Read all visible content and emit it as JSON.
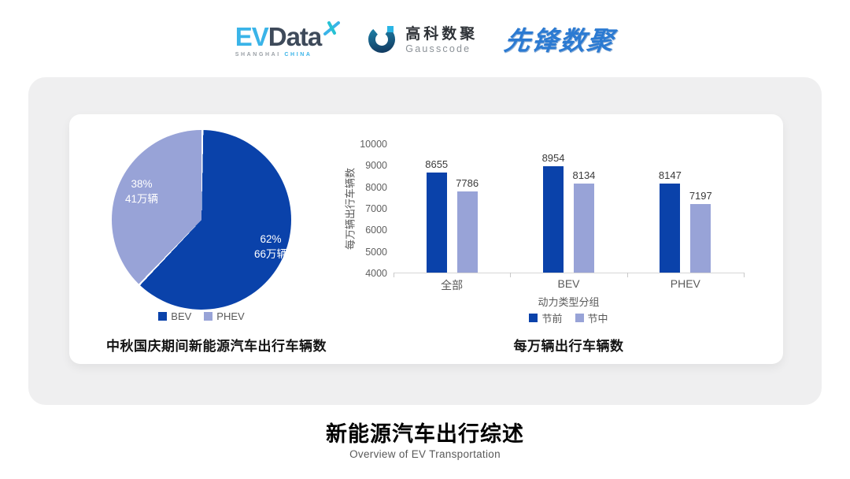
{
  "header": {
    "evdata_logo": {
      "ev": "EV",
      "data": "Data",
      "sub_primary": "SHANGHAI",
      "sub_accent": "CHINA"
    },
    "gausscode_logo": {
      "cn_name": "高科数聚",
      "en_name": "Gausscode"
    },
    "pioneer_logo": {
      "text": "先锋数聚"
    }
  },
  "colors": {
    "series_dark_blue": "#0a42aa",
    "series_periwinkle": "#98a3d7",
    "panel_gray": "#efeff0",
    "evdata_cyan": "#3ab4e8",
    "evdata_slate": "#3e4a5a",
    "pioneer_blue": "#2b7ad2",
    "axis_text_gray": "#595959"
  },
  "footer": {
    "title": "新能源汽车出行综述",
    "subtitle": "Overview of EV Transportation"
  },
  "chart_data": [
    {
      "type": "pie",
      "title": "中秋国庆期间新能源汽车出行车辆数",
      "start_angle": "top",
      "direction": "clockwise",
      "legend_position": "bottom",
      "slices": [
        {
          "label": "BEV",
          "percent": 62,
          "percent_label": "62%",
          "value_label": "66万辆",
          "color": "#0a42aa"
        },
        {
          "label": "PHEV",
          "percent": 38,
          "percent_label": "38%",
          "value_label": "41万辆",
          "color": "#98a3d7"
        }
      ]
    },
    {
      "type": "bar",
      "title": "每万辆出行车辆数",
      "categories": [
        "全部",
        "BEV",
        "PHEV"
      ],
      "series": [
        {
          "name": "节前",
          "values": [
            8655,
            8954,
            8147
          ],
          "color": "#0a42aa"
        },
        {
          "name": "节中",
          "values": [
            7786,
            8134,
            7197
          ],
          "color": "#98a3d7"
        }
      ],
      "xlabel": "动力类型分组",
      "ylabel": "每万辆出行车辆数",
      "ylim": [
        4000,
        10000
      ],
      "yticks": [
        4000,
        5000,
        6000,
        7000,
        8000,
        9000,
        10000
      ],
      "grid": false,
      "legend_position": "bottom"
    }
  ]
}
